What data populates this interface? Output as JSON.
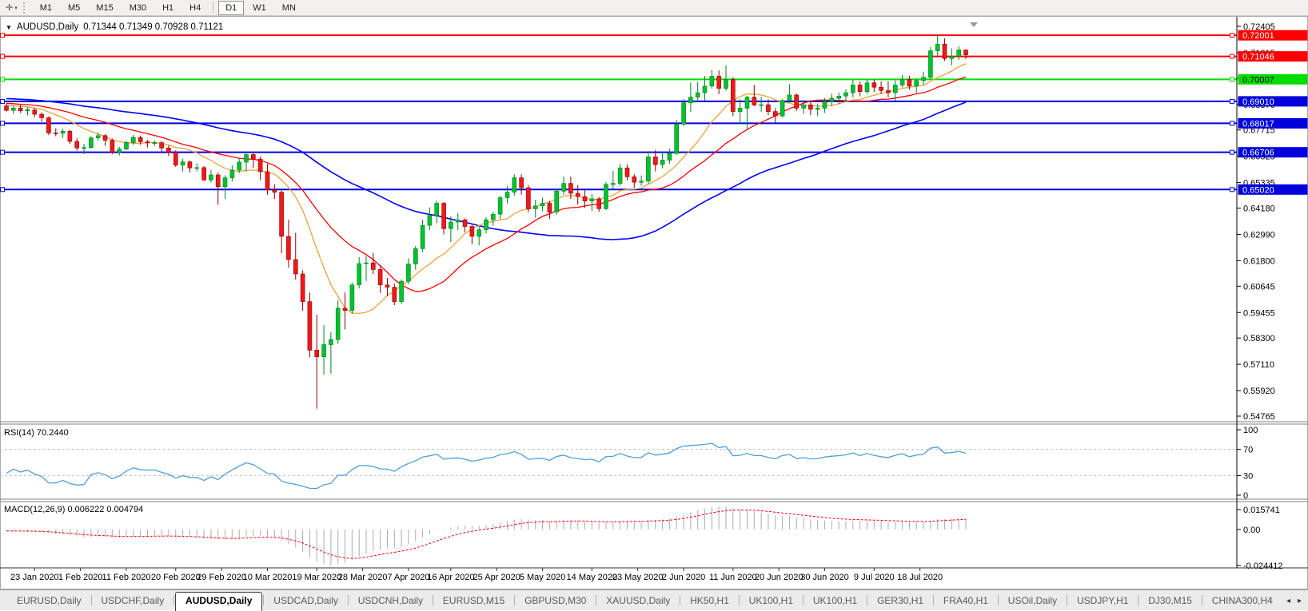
{
  "toolbar": {
    "cursor_tool_icon": "crosshair-cursor-icon",
    "cursor_glyph": "✛",
    "caret_glyph": "▾",
    "timeframes": [
      "M1",
      "M5",
      "M15",
      "M30",
      "H1",
      "H4",
      "D1",
      "W1",
      "MN"
    ],
    "active_timeframe": "D1",
    "separator_before": "D1"
  },
  "chart": {
    "symbol_timeframe": "AUDUSD,Daily",
    "ohlc_display": "0.71344 0.71349 0.70928 0.71121",
    "open": "0.71344",
    "high": "0.71349",
    "low": "0.70928",
    "close": "0.71121",
    "title_marker_icon": "dropdown-triangle-icon",
    "title_marker_glyph": "▼",
    "shift_marker_icon": "chart-shift-triangle-icon"
  },
  "rsi_panel": {
    "label": "RSI(14) 70.2440",
    "period": 14,
    "current": 70.244,
    "axis_ticks": [
      "100",
      "70",
      "30",
      "0"
    ],
    "level_lines": [
      70,
      30
    ],
    "line_color": "#4f9fd8"
  },
  "macd_panel": {
    "label": "MACD(12,26,9) 0.006222 0.004794",
    "fast": 12,
    "slow": 26,
    "signal": 9,
    "macd_value": 0.006222,
    "signal_value": 0.004794,
    "axis_ticks": [
      "0.015741",
      "0.00",
      "-0.024412"
    ],
    "histogram_color": "#ababab",
    "signal_color": "#ff0000"
  },
  "tabs": {
    "items": [
      "EURUSD,Daily",
      "USDCHF,Daily",
      "AUDUSD,Daily",
      "USDCAD,Daily",
      "USDCNH,Daily",
      "EURUSD,M15",
      "GBPUSD,M30",
      "XAUUSD,Daily",
      "HK50,H1",
      "UK100,H1",
      "UK100,H1",
      "GER30,H1",
      "FRA40,H1",
      "USOil,Daily",
      "USDJPY,H1",
      "DJ30,M15",
      "CHINA300,H4"
    ],
    "active_index": 2,
    "nav_left_icon": "scroll-left-icon",
    "nav_left_glyph": "◂",
    "nav_right_icon": "scroll-right-icon",
    "nav_right_glyph": "▸"
  },
  "chart_data": {
    "type": "candlestick",
    "symbol": "AUDUSD",
    "timeframe": "Daily",
    "up_color": "#00c22e",
    "up_border": "#008020",
    "down_color": "#f21818",
    "down_border": "#8c0000",
    "price_axis_ticks": [
      "0.72405",
      "0.71215",
      "0.70060",
      "0.68870",
      "0.67715",
      "0.66525",
      "0.65335",
      "0.64180",
      "0.62990",
      "0.61800",
      "0.60645",
      "0.59455",
      "0.58300",
      "0.57110",
      "0.55920",
      "0.54765"
    ],
    "price_range": [
      0.54765,
      0.72405
    ],
    "date_axis_labels": [
      "23 Jan 2020",
      "1 Feb 2020",
      "11 Feb 2020",
      "20 Feb 2020",
      "29 Feb 2020",
      "10 Mar 2020",
      "19 Mar 2020",
      "28 Mar 2020",
      "7 Apr 2020",
      "16 Apr 2020",
      "25 Apr 2020",
      "5 May 2020",
      "14 May 2020",
      "23 May 2020",
      "2 Jun 2020",
      "11 Jun 2020",
      "20 Jun 2020",
      "30 Jun 2020",
      "9 Jul 2020",
      "18 Jul 2020"
    ],
    "date_tick_candle_index": [
      4,
      10.5,
      17,
      24,
      30.5,
      37,
      44,
      50.5,
      57,
      63,
      69.5,
      76,
      83,
      89.5,
      96,
      103,
      109.5,
      116,
      123,
      129.5
    ],
    "horizontal_lines": [
      {
        "price": 0.72001,
        "label": "0.72001",
        "color": "#ff0000",
        "text_color": "#ffffff"
      },
      {
        "price": 0.71046,
        "label": "0.71046",
        "color": "#ff0000",
        "text_color": "#ffffff"
      },
      {
        "price": 0.70007,
        "label": "0.70007",
        "color": "#00dd00",
        "text_color": "#000000"
      },
      {
        "price": 0.6901,
        "label": "0.69010",
        "color": "#0000dd",
        "text_color": "#ffffff"
      },
      {
        "price": 0.68017,
        "label": "0.68017",
        "color": "#0000dd",
        "text_color": "#ffffff"
      },
      {
        "price": 0.66706,
        "label": "0.66706",
        "color": "#0000dd",
        "text_color": "#ffffff"
      },
      {
        "price": 0.6502,
        "label": "0.65020",
        "color": "#0000dd",
        "text_color": "#ffffff"
      }
    ],
    "moving_averages": [
      {
        "period": 10,
        "color": "#eda238"
      },
      {
        "period": 20,
        "color": "#ff0000"
      },
      {
        "period": 50,
        "color": "#0000ff"
      }
    ],
    "candles": [
      [
        0.688,
        0.6893,
        0.6855,
        0.686
      ],
      [
        0.686,
        0.6882,
        0.6845,
        0.6871
      ],
      [
        0.6871,
        0.6886,
        0.6848,
        0.6858
      ],
      [
        0.6858,
        0.6874,
        0.6838,
        0.6863
      ],
      [
        0.6862,
        0.6871,
        0.683,
        0.6843
      ],
      [
        0.6843,
        0.6851,
        0.6808,
        0.6827
      ],
      [
        0.6827,
        0.6833,
        0.6748,
        0.6758
      ],
      [
        0.6758,
        0.6779,
        0.6743,
        0.6757
      ],
      [
        0.6757,
        0.6776,
        0.6735,
        0.6766
      ],
      [
        0.6766,
        0.6773,
        0.6709,
        0.672
      ],
      [
        0.672,
        0.6734,
        0.6678,
        0.669
      ],
      [
        0.669,
        0.6709,
        0.6662,
        0.6692
      ],
      [
        0.6692,
        0.6743,
        0.6687,
        0.6736
      ],
      [
        0.6736,
        0.6761,
        0.6723,
        0.6746
      ],
      [
        0.6746,
        0.6753,
        0.67,
        0.6725
      ],
      [
        0.6725,
        0.6733,
        0.6662,
        0.667
      ],
      [
        0.667,
        0.6696,
        0.6656,
        0.6685
      ],
      [
        0.6685,
        0.6723,
        0.6679,
        0.6715
      ],
      [
        0.6715,
        0.6749,
        0.6704,
        0.6738
      ],
      [
        0.6738,
        0.6746,
        0.6704,
        0.6718
      ],
      [
        0.6718,
        0.6726,
        0.6692,
        0.6713
      ],
      [
        0.6713,
        0.6723,
        0.6699,
        0.6714
      ],
      [
        0.6714,
        0.6721,
        0.6674,
        0.669
      ],
      [
        0.669,
        0.6701,
        0.6654,
        0.667
      ],
      [
        0.667,
        0.6679,
        0.6604,
        0.6612
      ],
      [
        0.6612,
        0.6641,
        0.6584,
        0.6627
      ],
      [
        0.6627,
        0.6633,
        0.6579,
        0.66
      ],
      [
        0.66,
        0.6621,
        0.6584,
        0.6601
      ],
      [
        0.6601,
        0.6608,
        0.6541,
        0.6545
      ],
      [
        0.6545,
        0.6591,
        0.6534,
        0.6568
      ],
      [
        0.6568,
        0.6579,
        0.6433,
        0.6515
      ],
      [
        0.6515,
        0.6566,
        0.6459,
        0.6555
      ],
      [
        0.6555,
        0.6611,
        0.6539,
        0.659
      ],
      [
        0.659,
        0.6646,
        0.6576,
        0.6626
      ],
      [
        0.6626,
        0.6666,
        0.6584,
        0.666
      ],
      [
        0.666,
        0.6669,
        0.6599,
        0.664
      ],
      [
        0.664,
        0.6651,
        0.6544,
        0.6583
      ],
      [
        0.6583,
        0.6619,
        0.6479,
        0.65
      ],
      [
        0.65,
        0.6526,
        0.6459,
        0.649
      ],
      [
        0.649,
        0.6501,
        0.6214,
        0.629
      ],
      [
        0.629,
        0.6366,
        0.6149,
        0.6185
      ],
      [
        0.6185,
        0.6306,
        0.6094,
        0.612
      ],
      [
        0.612,
        0.6136,
        0.5954,
        0.5995
      ],
      [
        0.5995,
        0.6036,
        0.5744,
        0.5775
      ],
      [
        0.5775,
        0.5936,
        0.551,
        0.5745
      ],
      [
        0.5745,
        0.5889,
        0.5664,
        0.58
      ],
      [
        0.58,
        0.5856,
        0.5669,
        0.5823
      ],
      [
        0.5823,
        0.6001,
        0.5804,
        0.5965
      ],
      [
        0.5965,
        0.6036,
        0.5869,
        0.5955
      ],
      [
        0.5955,
        0.6081,
        0.5939,
        0.607
      ],
      [
        0.607,
        0.6196,
        0.6054,
        0.6167
      ],
      [
        0.6167,
        0.6201,
        0.6089,
        0.617
      ],
      [
        0.617,
        0.6216,
        0.6119,
        0.614
      ],
      [
        0.614,
        0.6161,
        0.6034,
        0.607
      ],
      [
        0.607,
        0.6101,
        0.6019,
        0.606
      ],
      [
        0.606,
        0.6076,
        0.5979,
        0.5995
      ],
      [
        0.5995,
        0.6096,
        0.5984,
        0.6087
      ],
      [
        0.6087,
        0.6191,
        0.6074,
        0.6165
      ],
      [
        0.6165,
        0.6246,
        0.6139,
        0.6234
      ],
      [
        0.6234,
        0.6365,
        0.6219,
        0.634
      ],
      [
        0.634,
        0.6421,
        0.6319,
        0.6385
      ],
      [
        0.6385,
        0.6451,
        0.6349,
        0.644
      ],
      [
        0.644,
        0.6446,
        0.6299,
        0.6325
      ],
      [
        0.6325,
        0.6381,
        0.6264,
        0.6355
      ],
      [
        0.6355,
        0.6396,
        0.6319,
        0.6365
      ],
      [
        0.6365,
        0.6371,
        0.6309,
        0.6335
      ],
      [
        0.6335,
        0.6341,
        0.6254,
        0.629
      ],
      [
        0.629,
        0.6336,
        0.6249,
        0.632
      ],
      [
        0.632,
        0.6376,
        0.6304,
        0.6365
      ],
      [
        0.6365,
        0.6401,
        0.6339,
        0.639
      ],
      [
        0.639,
        0.6473,
        0.6369,
        0.6465
      ],
      [
        0.6465,
        0.6516,
        0.6439,
        0.649
      ],
      [
        0.649,
        0.6571,
        0.6474,
        0.6555
      ],
      [
        0.6555,
        0.6571,
        0.6479,
        0.651
      ],
      [
        0.651,
        0.6521,
        0.6399,
        0.6415
      ],
      [
        0.6415,
        0.6456,
        0.6374,
        0.6428
      ],
      [
        0.6428,
        0.6466,
        0.6404,
        0.644
      ],
      [
        0.644,
        0.6451,
        0.6369,
        0.64
      ],
      [
        0.64,
        0.6506,
        0.6389,
        0.6495
      ],
      [
        0.6495,
        0.6561,
        0.6479,
        0.653
      ],
      [
        0.653,
        0.6561,
        0.6459,
        0.6485
      ],
      [
        0.6485,
        0.6521,
        0.6434,
        0.647
      ],
      [
        0.647,
        0.6506,
        0.6419,
        0.645
      ],
      [
        0.645,
        0.6481,
        0.6404,
        0.646
      ],
      [
        0.646,
        0.6469,
        0.6401,
        0.6415
      ],
      [
        0.6415,
        0.6536,
        0.6409,
        0.6525
      ],
      [
        0.6525,
        0.6586,
        0.6504,
        0.653
      ],
      [
        0.653,
        0.6618,
        0.6519,
        0.66
      ],
      [
        0.66,
        0.6616,
        0.6544,
        0.656
      ],
      [
        0.656,
        0.6571,
        0.6509,
        0.6535
      ],
      [
        0.6535,
        0.6566,
        0.6519,
        0.654
      ],
      [
        0.654,
        0.6676,
        0.6529,
        0.665
      ],
      [
        0.665,
        0.6681,
        0.6584,
        0.6615
      ],
      [
        0.6615,
        0.6666,
        0.6599,
        0.6635
      ],
      [
        0.6635,
        0.6686,
        0.6619,
        0.6665
      ],
      [
        0.6665,
        0.6816,
        0.6659,
        0.6798
      ],
      [
        0.6798,
        0.6911,
        0.6789,
        0.6895
      ],
      [
        0.6895,
        0.6986,
        0.6854,
        0.692
      ],
      [
        0.692,
        0.6989,
        0.6899,
        0.694
      ],
      [
        0.694,
        0.7016,
        0.6904,
        0.697
      ],
      [
        0.697,
        0.7044,
        0.6959,
        0.7015
      ],
      [
        0.7015,
        0.7041,
        0.6934,
        0.696
      ],
      [
        0.696,
        0.7064,
        0.6949,
        0.7
      ],
      [
        0.7,
        0.7011,
        0.6834,
        0.6855
      ],
      [
        0.6855,
        0.6911,
        0.6799,
        0.687
      ],
      [
        0.687,
        0.6926,
        0.6776,
        0.692
      ],
      [
        0.692,
        0.6976,
        0.6879,
        0.6885
      ],
      [
        0.6885,
        0.6921,
        0.6854,
        0.6886
      ],
      [
        0.6886,
        0.6911,
        0.6839,
        0.6855
      ],
      [
        0.6855,
        0.6871,
        0.6804,
        0.6835
      ],
      [
        0.6835,
        0.6911,
        0.6829,
        0.6905
      ],
      [
        0.6905,
        0.6978,
        0.6894,
        0.693
      ],
      [
        0.693,
        0.6936,
        0.6857,
        0.687
      ],
      [
        0.687,
        0.6906,
        0.6844,
        0.6885
      ],
      [
        0.6885,
        0.6901,
        0.6839,
        0.6865
      ],
      [
        0.6865,
        0.6891,
        0.6834,
        0.687
      ],
      [
        0.687,
        0.6916,
        0.6849,
        0.69
      ],
      [
        0.69,
        0.6936,
        0.6879,
        0.6915
      ],
      [
        0.6915,
        0.6941,
        0.6889,
        0.6925
      ],
      [
        0.6925,
        0.6956,
        0.6899,
        0.694
      ],
      [
        0.694,
        0.6999,
        0.6919,
        0.6975
      ],
      [
        0.6975,
        0.6991,
        0.6924,
        0.6945
      ],
      [
        0.6945,
        0.7,
        0.6934,
        0.6985
      ],
      [
        0.6985,
        0.7001,
        0.6944,
        0.6965
      ],
      [
        0.6965,
        0.6991,
        0.6934,
        0.695
      ],
      [
        0.695,
        0.6991,
        0.6919,
        0.694
      ],
      [
        0.694,
        0.6996,
        0.6904,
        0.6975
      ],
      [
        0.6975,
        0.7021,
        0.6964,
        0.7
      ],
      [
        0.7,
        0.7016,
        0.6954,
        0.697
      ],
      [
        0.697,
        0.7006,
        0.6939,
        0.6995
      ],
      [
        0.6995,
        0.7036,
        0.6974,
        0.701
      ],
      [
        0.701,
        0.7146,
        0.6999,
        0.713
      ],
      [
        0.713,
        0.72,
        0.7109,
        0.716
      ],
      [
        0.716,
        0.7186,
        0.7084,
        0.7095
      ],
      [
        0.7095,
        0.7141,
        0.7064,
        0.7105
      ],
      [
        0.7105,
        0.7151,
        0.7089,
        0.7134
      ],
      [
        0.7134,
        0.7135,
        0.7093,
        0.7112
      ]
    ]
  }
}
